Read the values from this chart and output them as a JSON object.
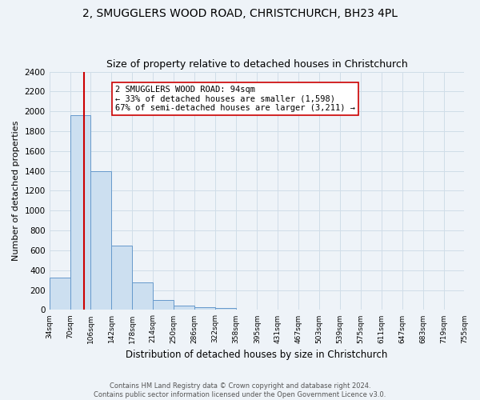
{
  "title": "2, SMUGGLERS WOOD ROAD, CHRISTCHURCH, BH23 4PL",
  "subtitle": "Size of property relative to detached houses in Christchurch",
  "xlabel": "Distribution of detached houses by size in Christchurch",
  "ylabel": "Number of detached properties",
  "bar_edges": [
    34,
    70,
    106,
    142,
    178,
    214,
    250,
    286,
    322,
    358,
    395,
    431,
    467,
    503,
    539,
    575,
    611,
    647,
    683,
    719,
    755
  ],
  "bar_heights": [
    325,
    1960,
    1400,
    650,
    275,
    100,
    45,
    30,
    20,
    0,
    0,
    0,
    0,
    0,
    0,
    0,
    0,
    0,
    0,
    0
  ],
  "bar_color": "#ccdff0",
  "bar_edge_color": "#6699cc",
  "property_line_x": 94,
  "property_line_color": "#cc0000",
  "annotation_text": "2 SMUGGLERS WOOD ROAD: 94sqm\n← 33% of detached houses are smaller (1,598)\n67% of semi-detached houses are larger (3,211) →",
  "annotation_box_color": "#ffffff",
  "annotation_box_edge": "#cc0000",
  "ylim": [
    0,
    2400
  ],
  "yticks": [
    0,
    200,
    400,
    600,
    800,
    1000,
    1200,
    1400,
    1600,
    1800,
    2000,
    2200,
    2400
  ],
  "grid_color": "#d0dde8",
  "background_color": "#eef3f8",
  "plot_bg_color": "#eef3f8",
  "footer_line1": "Contains HM Land Registry data © Crown copyright and database right 2024.",
  "footer_line2": "Contains public sector information licensed under the Open Government Licence v3.0.",
  "title_fontsize": 10,
  "subtitle_fontsize": 9,
  "annotation_fontsize": 7.5
}
